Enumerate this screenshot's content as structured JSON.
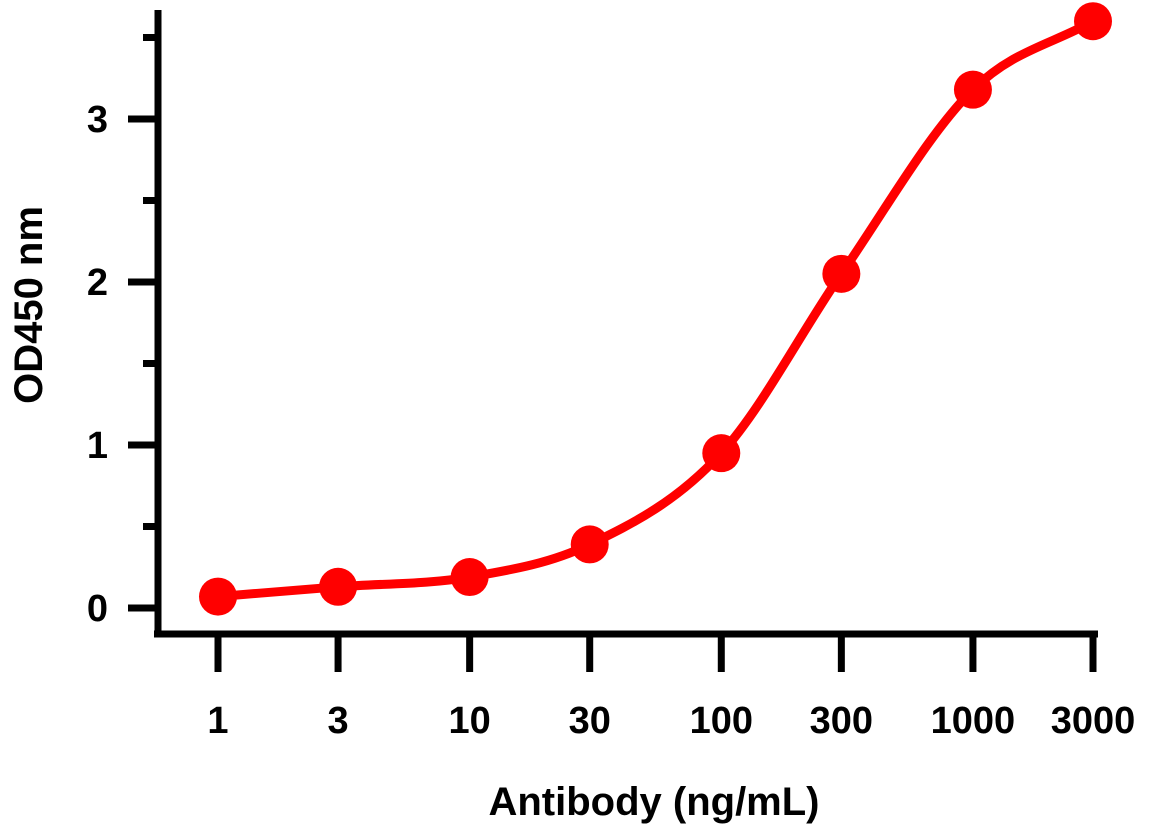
{
  "chart_data": {
    "type": "line",
    "x_scale": "log",
    "x": [
      1,
      3,
      10,
      30,
      100,
      300,
      1000,
      3000
    ],
    "x_tick_labels": [
      "1",
      "3",
      "10",
      "30",
      "100",
      "300",
      "1000",
      "3000"
    ],
    "series": [
      {
        "name": "",
        "color": "#ff0000",
        "values": [
          0.07,
          0.13,
          0.19,
          0.39,
          0.95,
          2.05,
          3.18,
          3.6
        ]
      }
    ],
    "xlabel": "Antibody (ng/mL)",
    "ylabel": "OD450 nm",
    "y_ticks": [
      0,
      1,
      2,
      3
    ],
    "y_tick_labels": [
      "0",
      "1",
      "2",
      "3"
    ],
    "ylim": [
      -0.1,
      3.7
    ],
    "grid": false,
    "marker": "filled-circle",
    "line_style": "smooth"
  }
}
